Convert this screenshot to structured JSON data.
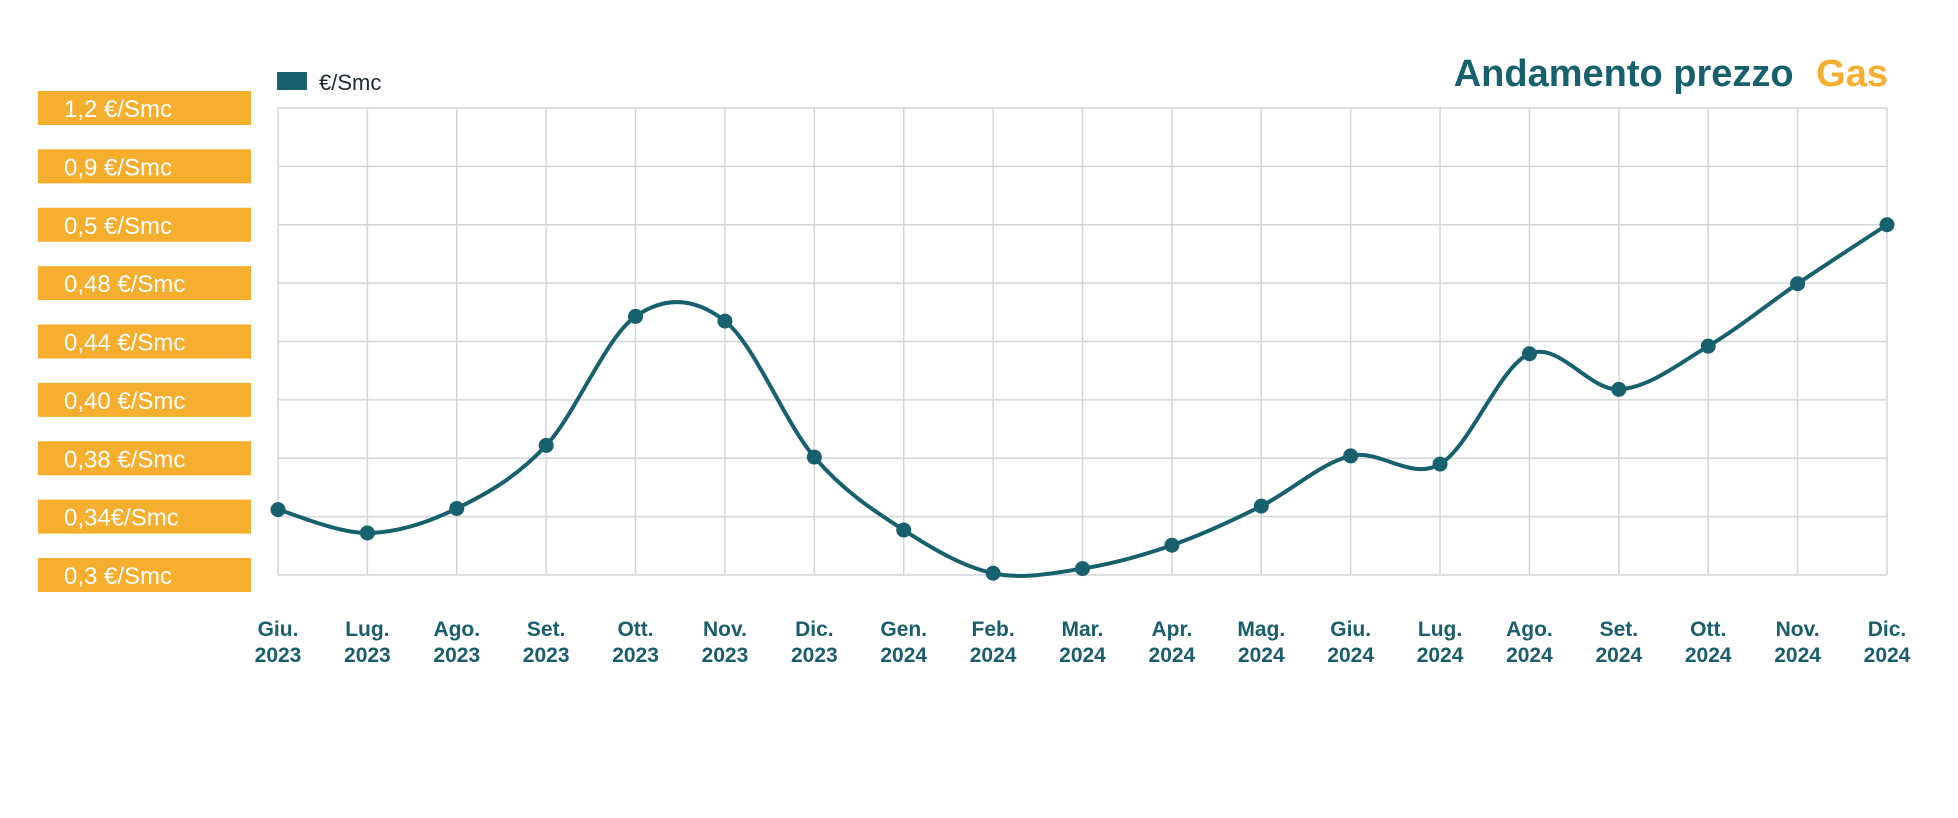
{
  "title": {
    "main": "Andamento prezzo",
    "accent": "Gas"
  },
  "colors": {
    "line": "#17606e",
    "accent": "#f5ae2e",
    "grid": "#d2d6d8",
    "text_dark": "#17606e"
  },
  "chart_data": {
    "type": "line",
    "legend": {
      "label": "€/Smc",
      "position": "top-left"
    },
    "grid": true,
    "y_ticks": [
      "1,2 €/Smc",
      "0,9 €/Smc",
      "0,5 €/Smc",
      "0,48 €/Smc",
      "0,44 €/Smc",
      "0,40 €/Smc",
      "0,38 €/Smc",
      "0,34€/Smc",
      "0,3 €/Smc"
    ],
    "categories": [
      [
        "Giu.",
        "2023"
      ],
      [
        "Lug.",
        "2023"
      ],
      [
        "Ago.",
        "2023"
      ],
      [
        "Set.",
        "2023"
      ],
      [
        "Ott.",
        "2023"
      ],
      [
        "Nov.",
        "2023"
      ],
      [
        "Dic.",
        "2023"
      ],
      [
        "Gen.",
        "2024"
      ],
      [
        "Feb.",
        "2024"
      ],
      [
        "Mar.",
        "2024"
      ],
      [
        "Apr.",
        "2024"
      ],
      [
        "Mag.",
        "2024"
      ],
      [
        "Giu.",
        "2024"
      ],
      [
        "Lug.",
        "2024"
      ],
      [
        "Ago.",
        "2024"
      ],
      [
        "Set.",
        "2024"
      ],
      [
        "Ott.",
        "2024"
      ],
      [
        "Nov.",
        "2024"
      ],
      [
        "Dic.",
        "2024"
      ]
    ],
    "series": [
      {
        "name": "€/Smc",
        "values": [
          1.12,
          0.72,
          1.14,
          2.22,
          4.43,
          4.35,
          2.02,
          0.77,
          0.03,
          0.11,
          0.51,
          1.18,
          2.04,
          1.9,
          3.79,
          3.18,
          3.92,
          4.99,
          6.0
        ]
      }
    ],
    "ylim": [
      0,
      8
    ]
  }
}
